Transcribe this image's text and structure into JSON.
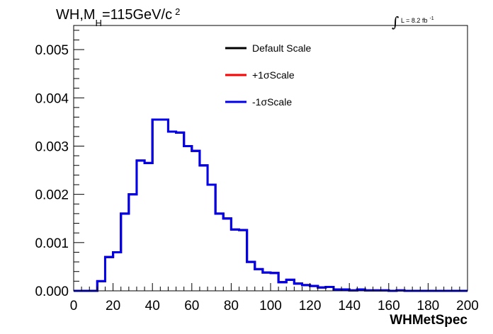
{
  "chart_data": {
    "type": "line",
    "title": {
      "main": "WH,M",
      "subscript": "H",
      "rest": "=115GeV/c",
      "superscript": "2"
    },
    "lumi_label": "L = 8.2 fb",
    "lumi_superscript": "-1",
    "xlabel": "WHMetSpec",
    "xlim": [
      0,
      200
    ],
    "ylim": [
      0,
      0.0055
    ],
    "x_ticks": [
      "0",
      "20",
      "40",
      "60",
      "80",
      "100",
      "120",
      "140",
      "160",
      "180",
      "200"
    ],
    "y_ticks": [
      "0.000",
      "0.001",
      "0.002",
      "0.003",
      "0.004",
      "0.005"
    ],
    "grid": false,
    "legend_position": "top-center",
    "bin_edges": [
      0,
      4,
      8,
      12,
      16,
      20,
      24,
      28,
      32,
      36,
      40,
      44,
      48,
      52,
      56,
      60,
      64,
      68,
      72,
      76,
      80,
      84,
      88,
      92,
      96,
      100,
      104,
      108,
      112,
      116,
      120,
      124,
      128,
      132,
      136,
      140,
      144,
      148,
      152,
      156,
      160,
      164,
      168,
      172,
      176,
      180,
      184,
      188,
      192,
      196,
      200
    ],
    "series": [
      {
        "name": "Default Scale",
        "color": "#000000",
        "values": [
          0,
          0,
          0,
          0.0002,
          0.0007,
          0.0008,
          0.0016,
          0.002,
          0.0027,
          0.00265,
          0.00355,
          0.00355,
          0.0033,
          0.00328,
          0.003,
          0.0029,
          0.0026,
          0.0022,
          0.0016,
          0.0015,
          0.00127,
          0.00126,
          0.0006,
          0.00045,
          0.00038,
          0.00037,
          0.00018,
          0.00023,
          0.00015,
          0.00012,
          0.0001,
          7e-05,
          8e-05,
          3e-05,
          3e-05,
          1e-05,
          3e-05,
          1e-05,
          1e-05,
          1e-05,
          0,
          1e-05,
          0,
          0,
          0,
          0,
          0,
          0,
          0,
          0
        ]
      },
      {
        "name": "+1σScale",
        "color": "#ff0000",
        "values": [
          0,
          0,
          0,
          0.0002,
          0.0007,
          0.0008,
          0.0016,
          0.002,
          0.0027,
          0.00265,
          0.00355,
          0.00355,
          0.0033,
          0.00328,
          0.003,
          0.0029,
          0.0026,
          0.0022,
          0.0016,
          0.0015,
          0.00127,
          0.00126,
          0.0006,
          0.00045,
          0.00038,
          0.00037,
          0.00018,
          0.00023,
          0.00015,
          0.00012,
          0.0001,
          7e-05,
          8e-05,
          3e-05,
          3e-05,
          1e-05,
          3e-05,
          1e-05,
          1e-05,
          1e-05,
          0,
          1e-05,
          0,
          0,
          0,
          0,
          0,
          0,
          0,
          0
        ]
      },
      {
        "name": "-1σScale",
        "color": "#0000ee",
        "values": [
          0,
          0,
          0,
          0.0002,
          0.0007,
          0.0008,
          0.0016,
          0.002,
          0.0027,
          0.00265,
          0.00355,
          0.00355,
          0.0033,
          0.00328,
          0.003,
          0.0029,
          0.0026,
          0.0022,
          0.0016,
          0.0015,
          0.00127,
          0.00126,
          0.0006,
          0.00045,
          0.00038,
          0.00037,
          0.00018,
          0.00023,
          0.00015,
          0.00012,
          0.0001,
          7e-05,
          8e-05,
          3e-05,
          3e-05,
          1e-05,
          3e-05,
          1e-05,
          1e-05,
          1e-05,
          0,
          1e-05,
          0,
          0,
          0,
          0,
          0,
          0,
          0,
          0
        ]
      }
    ]
  }
}
